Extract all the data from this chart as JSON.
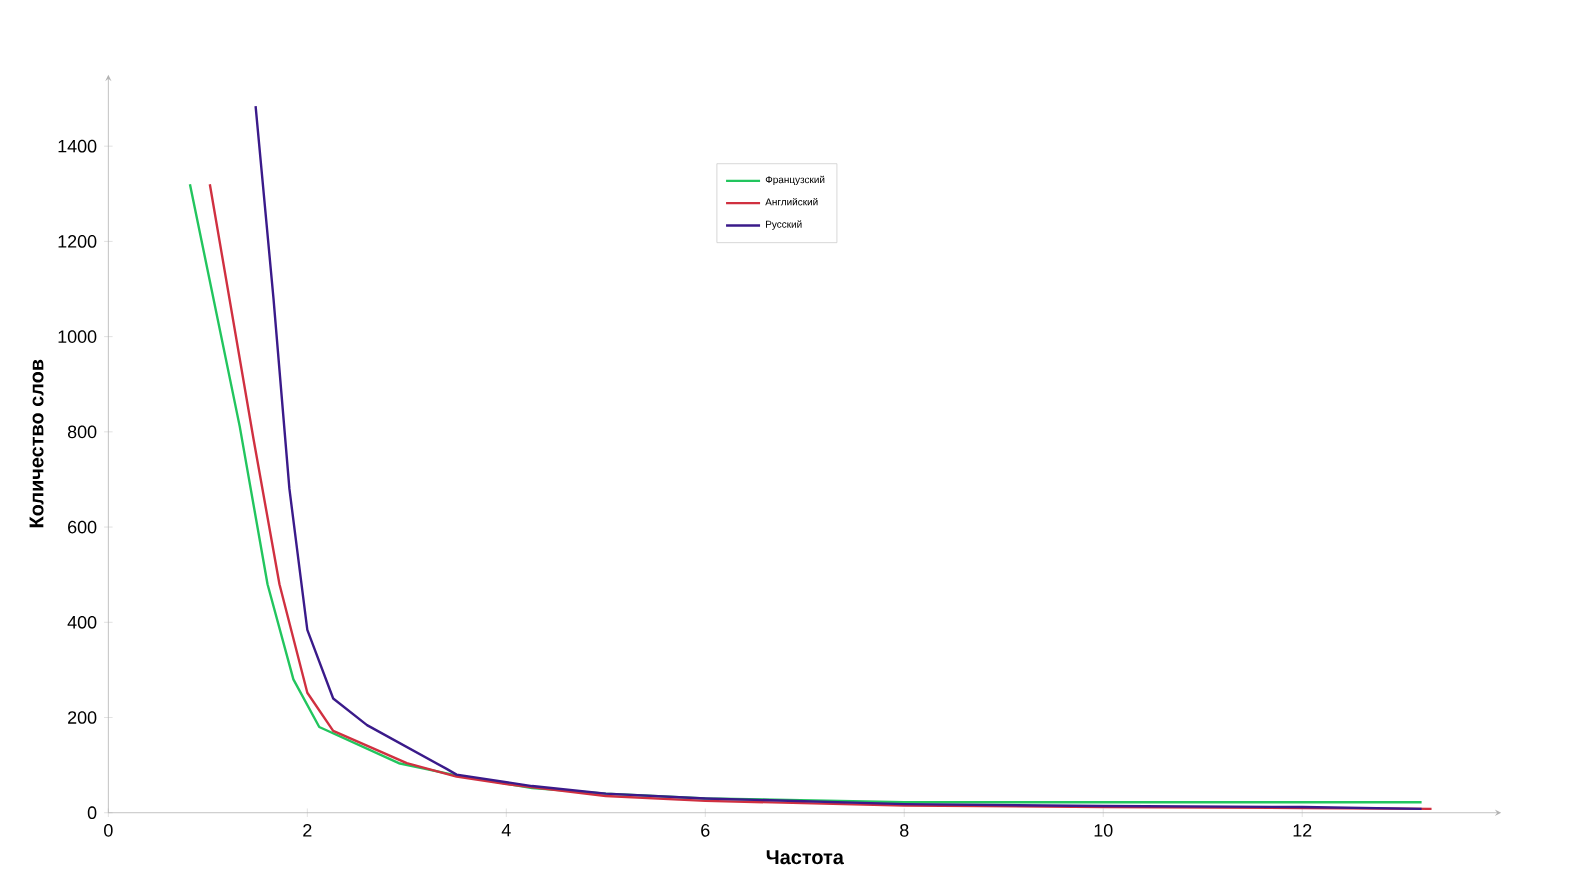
{
  "chart_data": {
    "type": "line",
    "xlabel": "Частота",
    "ylabel": "Количество слов",
    "xlim": [
      0,
      14
    ],
    "ylim": [
      0,
      1550
    ],
    "xticks": [
      0,
      2,
      4,
      6,
      8,
      10,
      12
    ],
    "yticks": [
      0,
      200,
      400,
      600,
      800,
      1000,
      1200,
      1400
    ],
    "grid": false,
    "legend": "top",
    "marker": "none",
    "line_style": "solid",
    "series": [
      {
        "name": "Французский",
        "color": "#22c55e",
        "x": [
          0.82,
          1.32,
          1.6,
          1.86,
          2.12,
          2.92,
          3.46,
          4.26,
          5,
          6,
          8,
          10,
          12,
          13.2
        ],
        "values": [
          1320,
          812,
          480,
          280,
          180,
          104,
          80,
          52,
          40,
          30,
          22,
          22,
          22,
          22
        ]
      },
      {
        "name": "Английский",
        "color": "#d03040",
        "x": [
          1.02,
          1.46,
          1.72,
          2.0,
          2.26,
          3.0,
          3.5,
          4.0,
          5,
          6,
          8,
          10,
          12,
          13.3
        ],
        "values": [
          1320,
          784,
          480,
          252,
          172,
          104,
          76,
          60,
          35,
          25,
          15,
          12,
          10,
          8
        ]
      },
      {
        "name": "Русский",
        "color": "#3a1a8a",
        "x": [
          1.48,
          1.66,
          1.82,
          2.0,
          2.26,
          2.6,
          3.4,
          3.5,
          4.26,
          5,
          6,
          8,
          10,
          12,
          13.2
        ],
        "values": [
          1484,
          1080,
          680,
          384,
          240,
          184,
          92,
          80,
          56,
          40,
          30,
          18,
          14,
          12,
          8
        ]
      }
    ]
  }
}
